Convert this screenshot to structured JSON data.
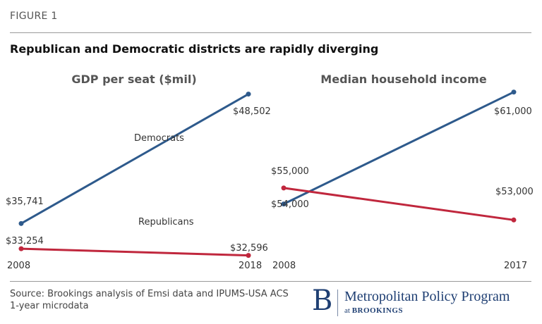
{
  "header": {
    "figure_label": "FIGURE 1",
    "title": "Republican and Democratic districts are rapidly diverging"
  },
  "chart_data": [
    {
      "type": "line",
      "title": "GDP per seat ($mil)",
      "x": [
        "2008",
        "2018"
      ],
      "ylim": [
        30000,
        50000
      ],
      "series": [
        {
          "name": "Democrats",
          "color": "#2e5a8c",
          "values": [
            35741,
            48502
          ],
          "labels": [
            "$35,741",
            "$48,502"
          ]
        },
        {
          "name": "Republicans",
          "color": "#c0273d",
          "values": [
            33254,
            32596
          ],
          "labels": [
            "$33,254",
            "$32,596"
          ]
        }
      ]
    },
    {
      "type": "line",
      "title": "Median household income",
      "x": [
        "2008",
        "2017"
      ],
      "ylim": [
        52000,
        62000
      ],
      "series": [
        {
          "name": "",
          "color": "#2e5a8c",
          "values": [
            54000,
            61000
          ],
          "labels": [
            "$54,000",
            "$61,000"
          ]
        },
        {
          "name": "",
          "color": "#c0273d",
          "values": [
            55000,
            53000
          ],
          "labels": [
            "$55,000",
            "$53,000"
          ]
        }
      ]
    }
  ],
  "footer": {
    "source": "Source: Brookings analysis of Emsi data and IPUMS-USA ACS 1-year microdata",
    "logo_letter": "B",
    "program_name": "Metropolitan Policy Program",
    "program_at": "at",
    "program_brand": "BROOKINGS"
  }
}
